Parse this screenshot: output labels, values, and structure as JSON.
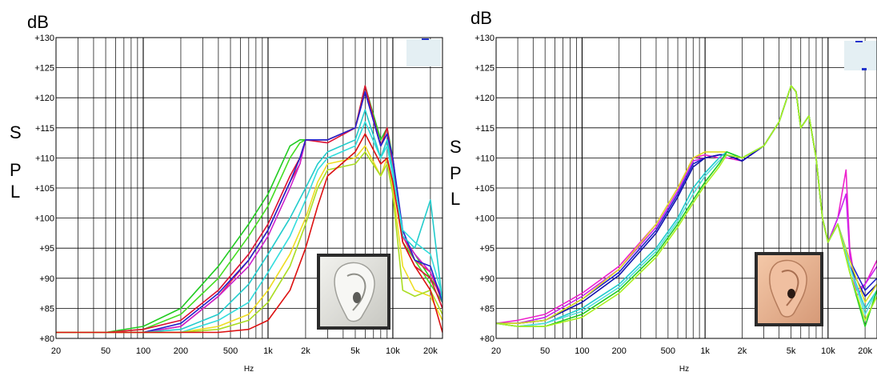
{
  "chart_data": [
    {
      "type": "line",
      "id": "left",
      "ylabel_top": "dB",
      "ylabel_side": [
        "S",
        "P",
        "L"
      ],
      "xlabel": "Hz",
      "xscale": "log",
      "xlim": [
        20,
        25000
      ],
      "ylim": [
        80,
        130
      ],
      "grid": true,
      "x_ticks": [
        20,
        50,
        100,
        200,
        500,
        1000,
        2000,
        5000,
        10000,
        20000
      ],
      "x_tick_labels": [
        "20",
        "50",
        "100",
        "200",
        "500",
        "1k",
        "2k",
        "5k",
        "10k",
        "20k"
      ],
      "y_ticks": [
        80,
        85,
        90,
        95,
        100,
        105,
        110,
        115,
        120,
        125,
        130
      ],
      "y_tick_labels": [
        "+80",
        "+85",
        "+90",
        "+95",
        "+100",
        "+105",
        "+110",
        "+115",
        "+120",
        "+125",
        "+130"
      ],
      "inset": "ear-gray",
      "series": [
        {
          "color": "#22cc22",
          "x": [
            20,
            50,
            100,
            200,
            400,
            700,
            1000,
            1500,
            1800,
            2000,
            3000,
            5000,
            6000,
            8000,
            9000,
            10000,
            12000,
            15000,
            20000,
            25000
          ],
          "y": [
            81,
            81,
            82,
            85,
            92,
            99,
            104,
            112,
            113,
            113,
            113,
            115,
            122,
            113,
            115,
            110,
            97,
            94,
            90,
            87
          ]
        },
        {
          "color": "#44dd22",
          "x": [
            20,
            50,
            100,
            200,
            400,
            700,
            1000,
            1500,
            1800,
            2000,
            3000,
            5000,
            6000,
            8000,
            9000,
            10000,
            12000,
            15000,
            20000,
            25000
          ],
          "y": [
            81,
            81,
            81.5,
            84,
            90,
            97,
            102,
            110,
            112.5,
            113,
            113,
            115,
            121,
            112,
            114,
            109,
            96,
            93,
            89,
            86
          ]
        },
        {
          "color": "#dd1133",
          "x": [
            20,
            50,
            100,
            200,
            400,
            700,
            1000,
            1500,
            1800,
            2000,
            3000,
            5000,
            6000,
            8000,
            9000,
            10000,
            12000,
            15000,
            20000,
            25000
          ],
          "y": [
            81,
            81,
            81.5,
            83,
            88,
            94,
            99,
            107,
            110,
            113,
            112.5,
            115,
            122,
            112,
            115,
            109,
            96,
            92,
            90,
            85
          ]
        },
        {
          "color": "#ee2255",
          "x": [
            20,
            50,
            100,
            200,
            400,
            700,
            1000,
            1500,
            1800,
            2000,
            3000,
            5000,
            6000,
            8000,
            9000,
            10000,
            12000,
            15000,
            20000,
            25000
          ],
          "y": [
            81,
            81,
            81,
            82,
            87,
            93,
            98,
            106,
            109,
            113,
            113,
            115,
            121,
            112,
            114,
            109,
            97,
            93,
            91,
            86
          ]
        },
        {
          "color": "#cc22cc",
          "x": [
            20,
            50,
            100,
            200,
            400,
            700,
            1000,
            1500,
            1800,
            2000,
            3000,
            5000,
            6000,
            8000,
            9000,
            10000,
            12000,
            15000,
            20000,
            25000
          ],
          "y": [
            81,
            81,
            81,
            82,
            87,
            92,
            97,
            105,
            109,
            113,
            113,
            115,
            121,
            112,
            114,
            110,
            97,
            94,
            91,
            87
          ]
        },
        {
          "color": "#2222cc",
          "x": [
            20,
            50,
            100,
            200,
            400,
            700,
            1000,
            1500,
            1800,
            2000,
            3000,
            5000,
            6000,
            8000,
            9000,
            10000,
            12000,
            15000,
            20000,
            25000
          ],
          "y": [
            81,
            81,
            81,
            82.5,
            87.5,
            93,
            98,
            106,
            110,
            113,
            113,
            115,
            121,
            112,
            114,
            110,
            98,
            93,
            92,
            86
          ]
        },
        {
          "color": "#22cccc",
          "x": [
            20,
            50,
            100,
            200,
            400,
            700,
            1000,
            1500,
            2000,
            2500,
            3000,
            5000,
            6000,
            8000,
            9000,
            10000,
            12000,
            15000,
            20000,
            25000
          ],
          "y": [
            81,
            81,
            81,
            81.5,
            84,
            89,
            94,
            100,
            105,
            109,
            111,
            113,
            118,
            110,
            113,
            108,
            97,
            95,
            103,
            86
          ]
        },
        {
          "color": "#33dddd",
          "x": [
            20,
            50,
            100,
            200,
            400,
            700,
            1000,
            1500,
            2000,
            2500,
            3000,
            5000,
            6000,
            8000,
            9000,
            10000,
            12000,
            15000,
            20000,
            25000
          ],
          "y": [
            81,
            81,
            81,
            81,
            83,
            86,
            91,
            97,
            103,
            108,
            110,
            112,
            116,
            110,
            112,
            107,
            98,
            96,
            94,
            87
          ]
        },
        {
          "color": "#eedd22",
          "x": [
            20,
            50,
            100,
            200,
            400,
            700,
            1000,
            1500,
            2000,
            2500,
            3000,
            5000,
            6000,
            8000,
            9000,
            10000,
            12000,
            15000,
            20000,
            25000
          ],
          "y": [
            81,
            81,
            81,
            81,
            82,
            84,
            88,
            94,
            100,
            106,
            109,
            110,
            112,
            107,
            110,
            105,
            92,
            88,
            87,
            83
          ]
        },
        {
          "color": "#aadd22",
          "x": [
            20,
            50,
            100,
            200,
            400,
            700,
            1000,
            1500,
            2000,
            2500,
            3000,
            5000,
            6000,
            8000,
            9000,
            10000,
            12000,
            15000,
            20000,
            25000
          ],
          "y": [
            81,
            81,
            81,
            81,
            81.5,
            83,
            86,
            92,
            99,
            105,
            108,
            109,
            111,
            107,
            109,
            104,
            88,
            87,
            88,
            84
          ]
        },
        {
          "color": "#dd1111",
          "x": [
            20,
            50,
            100,
            200,
            400,
            700,
            1000,
            1500,
            2000,
            2500,
            3000,
            5000,
            6000,
            8000,
            9000,
            10000,
            12000,
            15000,
            20000,
            25000
          ],
          "y": [
            81,
            81,
            81,
            81,
            81,
            81.5,
            83,
            88,
            95,
            102,
            107,
            111,
            114,
            109,
            110,
            106,
            96,
            92,
            88,
            81
          ]
        }
      ]
    },
    {
      "type": "line",
      "id": "right",
      "ylabel_top": "dB",
      "ylabel_side": [
        "S",
        "P",
        "L"
      ],
      "xlabel": "Hz",
      "xscale": "log",
      "xlim": [
        20,
        25000
      ],
      "ylim": [
        80,
        130
      ],
      "grid": true,
      "x_ticks": [
        20,
        50,
        100,
        200,
        500,
        1000,
        2000,
        5000,
        10000,
        20000
      ],
      "x_tick_labels": [
        "20",
        "50",
        "100",
        "200",
        "500",
        "1k",
        "2k",
        "5k",
        "10k",
        "20k"
      ],
      "y_ticks": [
        80,
        85,
        90,
        95,
        100,
        105,
        110,
        115,
        120,
        125,
        130
      ],
      "y_tick_labels": [
        "+80",
        "+85",
        "+90",
        "+95",
        "+100",
        "+105",
        "+110",
        "+115",
        "+120",
        "+125",
        "+130"
      ],
      "inset": "ear-skin",
      "series": [
        {
          "color": "#ee22cc",
          "x": [
            20,
            30,
            50,
            100,
            200,
            400,
            600,
            800,
            1000,
            1300,
            1500,
            2000,
            3000,
            4000,
            5000,
            5500,
            6000,
            7000,
            8000,
            9000,
            10000,
            12000,
            14000,
            15000,
            17000,
            20000,
            25000
          ],
          "y": [
            82.5,
            83,
            84,
            87.5,
            92,
            99,
            105,
            110,
            110.5,
            110,
            110,
            109.5,
            112,
            116,
            122,
            121,
            115,
            117,
            110,
            100,
            96,
            100,
            108,
            95,
            88,
            89,
            93
          ]
        },
        {
          "color": "#cc22ee",
          "x": [
            20,
            30,
            50,
            100,
            200,
            400,
            600,
            800,
            1000,
            1300,
            1500,
            2000,
            3000,
            4000,
            5000,
            5500,
            6000,
            7000,
            8000,
            9000,
            10000,
            12000,
            14000,
            15000,
            17000,
            20000,
            25000
          ],
          "y": [
            82.5,
            82.5,
            83.5,
            87,
            91.5,
            98.5,
            104.5,
            109.5,
            110,
            110.5,
            110.5,
            109.5,
            112,
            116,
            122,
            121,
            115,
            117,
            110,
            100,
            96,
            100,
            104,
            94,
            87,
            89,
            92
          ]
        },
        {
          "color": "#2222cc",
          "x": [
            20,
            30,
            50,
            100,
            200,
            400,
            600,
            800,
            1000,
            1300,
            1500,
            2000,
            3000,
            4000,
            5000,
            5500,
            6000,
            7000,
            8000,
            9000,
            10000,
            12000,
            15000,
            20000,
            25000
          ],
          "y": [
            82.5,
            82.5,
            83,
            86.5,
            91,
            98,
            104,
            109,
            110,
            110.5,
            110.5,
            109.5,
            112,
            116,
            122,
            121,
            115,
            117,
            110,
            100,
            96,
            99,
            93,
            88,
            90
          ]
        },
        {
          "color": "#1111aa",
          "x": [
            20,
            30,
            50,
            100,
            200,
            400,
            600,
            800,
            1000,
            1300,
            1500,
            2000,
            3000,
            4000,
            5000,
            5500,
            6000,
            7000,
            8000,
            9000,
            10000,
            12000,
            15000,
            20000,
            25000
          ],
          "y": [
            82.5,
            82.5,
            83,
            86,
            90.5,
            97.5,
            103.5,
            108.5,
            110,
            110.5,
            110.5,
            109.5,
            112,
            116,
            122,
            121,
            115,
            117,
            110,
            100,
            96,
            99,
            92,
            87,
            89
          ]
        },
        {
          "color": "#dddd22",
          "x": [
            20,
            30,
            50,
            100,
            200,
            400,
            600,
            800,
            1000,
            1300,
            1500,
            2000,
            3000,
            4000,
            5000,
            5500,
            6000,
            7000,
            8000,
            9000,
            10000,
            12000,
            15000,
            20000,
            25000
          ],
          "y": [
            82.5,
            82.5,
            83,
            86.5,
            91.5,
            99,
            105,
            110,
            111,
            111,
            111,
            110,
            112,
            116,
            122,
            121,
            115,
            117,
            110,
            100,
            96,
            99,
            93,
            86,
            89
          ]
        },
        {
          "color": "#22cccc",
          "x": [
            20,
            30,
            50,
            100,
            200,
            400,
            600,
            800,
            1000,
            1300,
            1500,
            2000,
            3000,
            4000,
            5000,
            5500,
            6000,
            7000,
            8000,
            9000,
            10000,
            12000,
            15000,
            20000,
            25000
          ],
          "y": [
            82.5,
            82,
            82.5,
            85,
            89,
            95,
            100,
            105,
            107.5,
            110,
            111,
            110,
            112,
            116,
            122,
            121,
            115,
            117,
            110,
            100,
            96,
            99,
            92,
            85,
            88
          ]
        },
        {
          "color": "#55dddd",
          "x": [
            20,
            30,
            50,
            100,
            200,
            400,
            600,
            800,
            1000,
            1300,
            1500,
            2000,
            3000,
            4000,
            5000,
            5500,
            6000,
            7000,
            8000,
            9000,
            10000,
            12000,
            15000,
            20000,
            25000
          ],
          "y": [
            82.5,
            82,
            82.5,
            84.5,
            88.5,
            94.5,
            99.5,
            104,
            107,
            109.5,
            110.5,
            110,
            112,
            116,
            122,
            121,
            115,
            117,
            110,
            100,
            96,
            99,
            92,
            84,
            88
          ]
        },
        {
          "color": "#22cc22",
          "x": [
            20,
            30,
            50,
            100,
            200,
            400,
            600,
            800,
            1000,
            1300,
            1500,
            2000,
            3000,
            4000,
            5000,
            5500,
            6000,
            7000,
            8000,
            9000,
            10000,
            12000,
            15000,
            20000,
            25000
          ],
          "y": [
            82.5,
            82,
            82,
            84,
            88,
            94,
            99,
            103,
            106,
            109,
            111,
            110,
            112,
            116,
            122,
            121,
            115,
            117,
            110,
            100,
            96,
            99,
            91,
            82,
            88
          ]
        },
        {
          "color": "#aaee22",
          "x": [
            20,
            30,
            50,
            100,
            200,
            400,
            600,
            800,
            1000,
            1300,
            1500,
            2000,
            3000,
            4000,
            5000,
            5500,
            6000,
            7000,
            8000,
            9000,
            10000,
            12000,
            15000,
            20000,
            25000
          ],
          "y": [
            82.5,
            82,
            82,
            83.5,
            87.5,
            93.5,
            98.5,
            102.5,
            105.5,
            108.5,
            110.5,
            110,
            112,
            116,
            122,
            121,
            115,
            117,
            110,
            100,
            96,
            99,
            91,
            83,
            87
          ]
        }
      ]
    }
  ]
}
